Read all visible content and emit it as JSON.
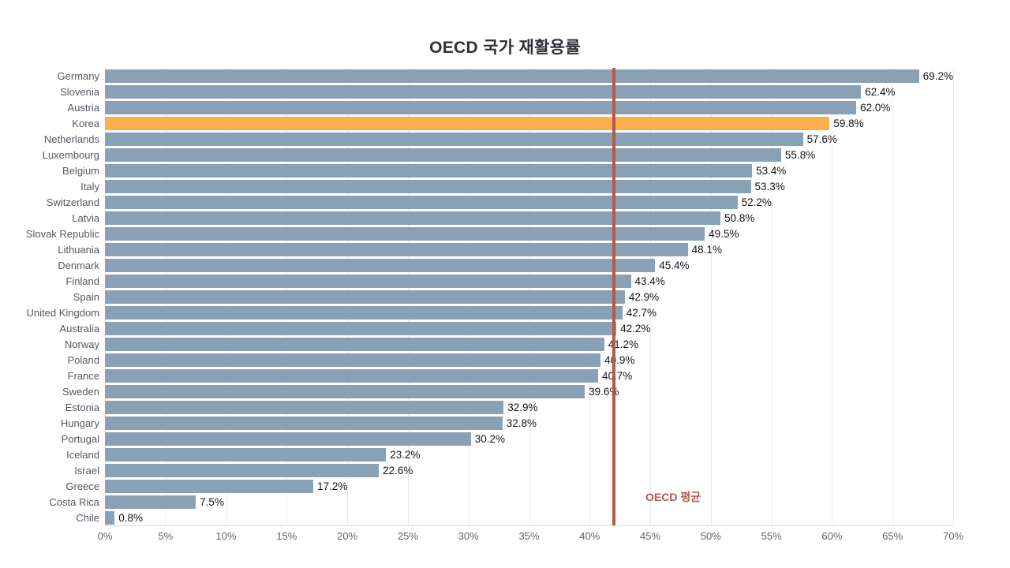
{
  "page": {
    "background": "#ffffff"
  },
  "chart_data": {
    "type": "bar",
    "orientation": "horizontal",
    "title": "OECD 국가 재활용률",
    "categories": [
      "Germany",
      "Slovenia",
      "Austria",
      "Korea",
      "Netherlands",
      "Luxembourg",
      "Belgium",
      "Italy",
      "Switzerland",
      "Latvia",
      "Slovak Republic",
      "Lithuania",
      "Denmark",
      "Finland",
      "Spain",
      "United Kingdom",
      "Australia",
      "Norway",
      "Poland",
      "France",
      "Sweden",
      "Estonia",
      "Hungary",
      "Portugal",
      "Iceland",
      "Israel",
      "Greece",
      "Costa Rica",
      "Chile"
    ],
    "values": [
      69.2,
      62.4,
      62.0,
      59.8,
      57.6,
      55.8,
      53.4,
      53.3,
      52.2,
      50.8,
      49.5,
      48.1,
      45.4,
      43.4,
      42.9,
      42.7,
      42.2,
      41.2,
      40.9,
      40.7,
      39.6,
      32.9,
      32.8,
      30.2,
      23.2,
      22.6,
      17.2,
      7.5,
      0.8
    ],
    "value_suffix": "%",
    "bar_color": "#8AA0B5",
    "highlight": {
      "category": "Korea",
      "color": "#FBAE4C"
    },
    "xlim": [
      0,
      70
    ],
    "x_ticks": [
      "0%",
      "5%",
      "10%",
      "15%",
      "20%",
      "25%",
      "30%",
      "35%",
      "40%",
      "45%",
      "50%",
      "55%",
      "60%",
      "65%",
      "70%"
    ],
    "grid": true,
    "legend": "none",
    "average_line": {
      "label": "OECD 평균",
      "value": 42.0,
      "color": "#B25B4B"
    }
  }
}
